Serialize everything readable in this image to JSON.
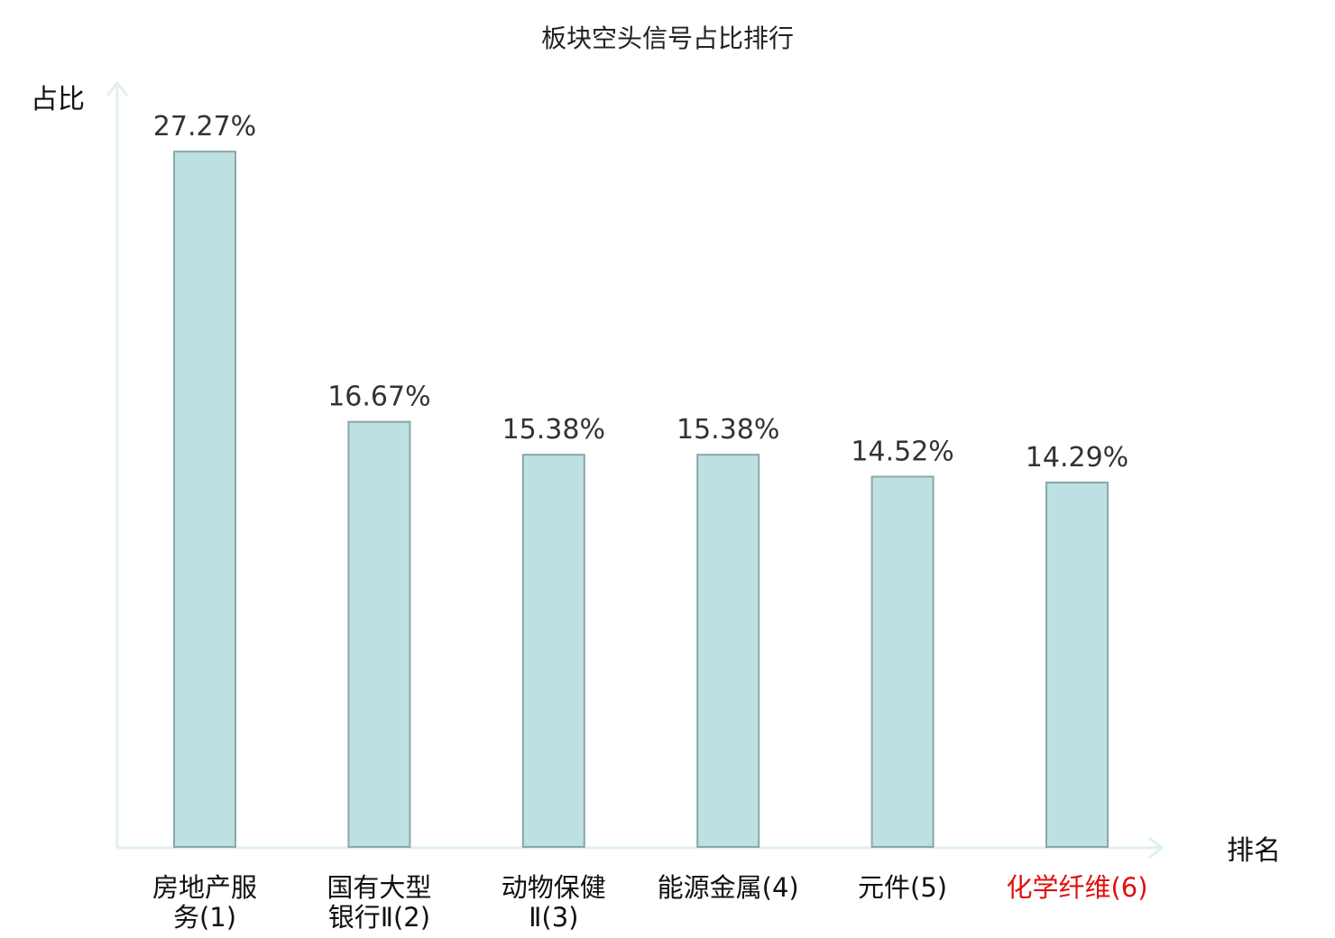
{
  "chart_data": {
    "type": "bar",
    "title": "板块空头信号占比排行",
    "ylabel": "占比",
    "xlabel": "排名",
    "ylim": [
      0,
      30
    ],
    "grid": false,
    "categories": [
      {
        "lines": [
          "房地产服",
          "务(1)"
        ],
        "highlight": false
      },
      {
        "lines": [
          "国有大型",
          "银行Ⅱ(2)"
        ],
        "highlight": false
      },
      {
        "lines": [
          "动物保健",
          "Ⅱ(3)"
        ],
        "highlight": false
      },
      {
        "lines": [
          "能源金属(4)"
        ],
        "highlight": false
      },
      {
        "lines": [
          "元件(5)"
        ],
        "highlight": false
      },
      {
        "lines": [
          "化学纤维(6)"
        ],
        "highlight": true
      }
    ],
    "values": [
      27.27,
      16.67,
      15.38,
      15.38,
      14.52,
      14.29
    ],
    "value_labels": [
      "27.27%",
      "16.67%",
      "15.38%",
      "15.38%",
      "14.52%",
      "14.29%"
    ],
    "colors": {
      "bar_fill": "#bde1e3",
      "bar_stroke": "#8aa7a8",
      "axis": "#dff0ee",
      "label": "#111111",
      "highlight": "#e01010"
    }
  }
}
